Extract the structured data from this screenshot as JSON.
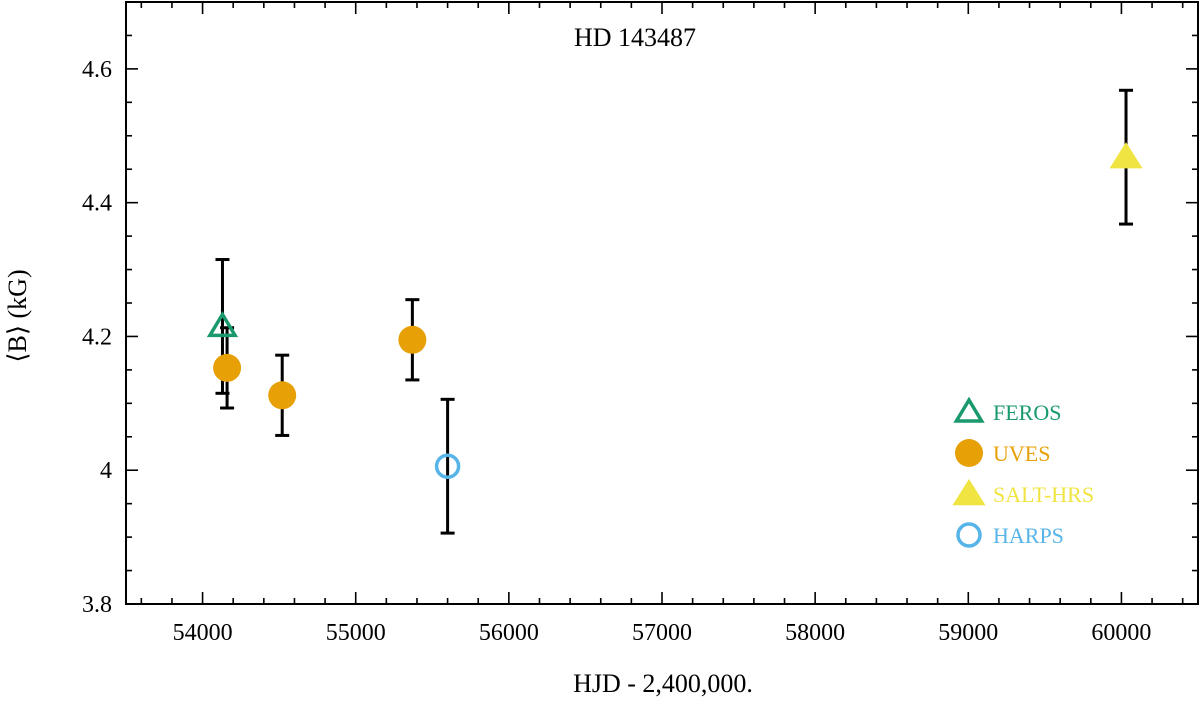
{
  "chart_data": {
    "type": "scatter",
    "title": "HD 143487",
    "xlabel": "HJD - 2,400,000.",
    "ylabel": "⟨B⟩ (kG)",
    "xlim": [
      53500,
      60500
    ],
    "ylim": [
      3.8,
      4.7
    ],
    "x_ticks": [
      54000,
      55000,
      56000,
      57000,
      58000,
      59000,
      60000
    ],
    "x_tick_labels": [
      "54000",
      "55000",
      "56000",
      "57000",
      "58000",
      "59000",
      "60000"
    ],
    "x_minor_step": 200,
    "y_ticks": [
      3.8,
      4.0,
      4.2,
      4.4,
      4.6
    ],
    "y_tick_labels": [
      "3.8",
      "4",
      "4.2",
      "4.4",
      "4.6"
    ],
    "y_minor_step": 0.05,
    "grid": false,
    "legend_position": "lower-right",
    "series": [
      {
        "name": "FEROS",
        "marker": "triangle-open",
        "color": "#1a9a6c",
        "points": [
          {
            "x": 54130,
            "y": 4.215,
            "err": 0.1
          }
        ]
      },
      {
        "name": "UVES",
        "marker": "circle-filled",
        "color": "#e8a007",
        "points": [
          {
            "x": 54160,
            "y": 4.153,
            "err": 0.06
          },
          {
            "x": 54520,
            "y": 4.112,
            "err": 0.06
          },
          {
            "x": 55370,
            "y": 4.195,
            "err": 0.06
          }
        ]
      },
      {
        "name": "SALT-HRS",
        "marker": "triangle-filled",
        "color": "#f0e442",
        "points": [
          {
            "x": 60030,
            "y": 4.468,
            "err": 0.1
          }
        ]
      },
      {
        "name": "HARPS",
        "marker": "circle-open",
        "color": "#56b4e9",
        "points": [
          {
            "x": 55600,
            "y": 4.006,
            "err": 0.1
          }
        ]
      }
    ]
  }
}
